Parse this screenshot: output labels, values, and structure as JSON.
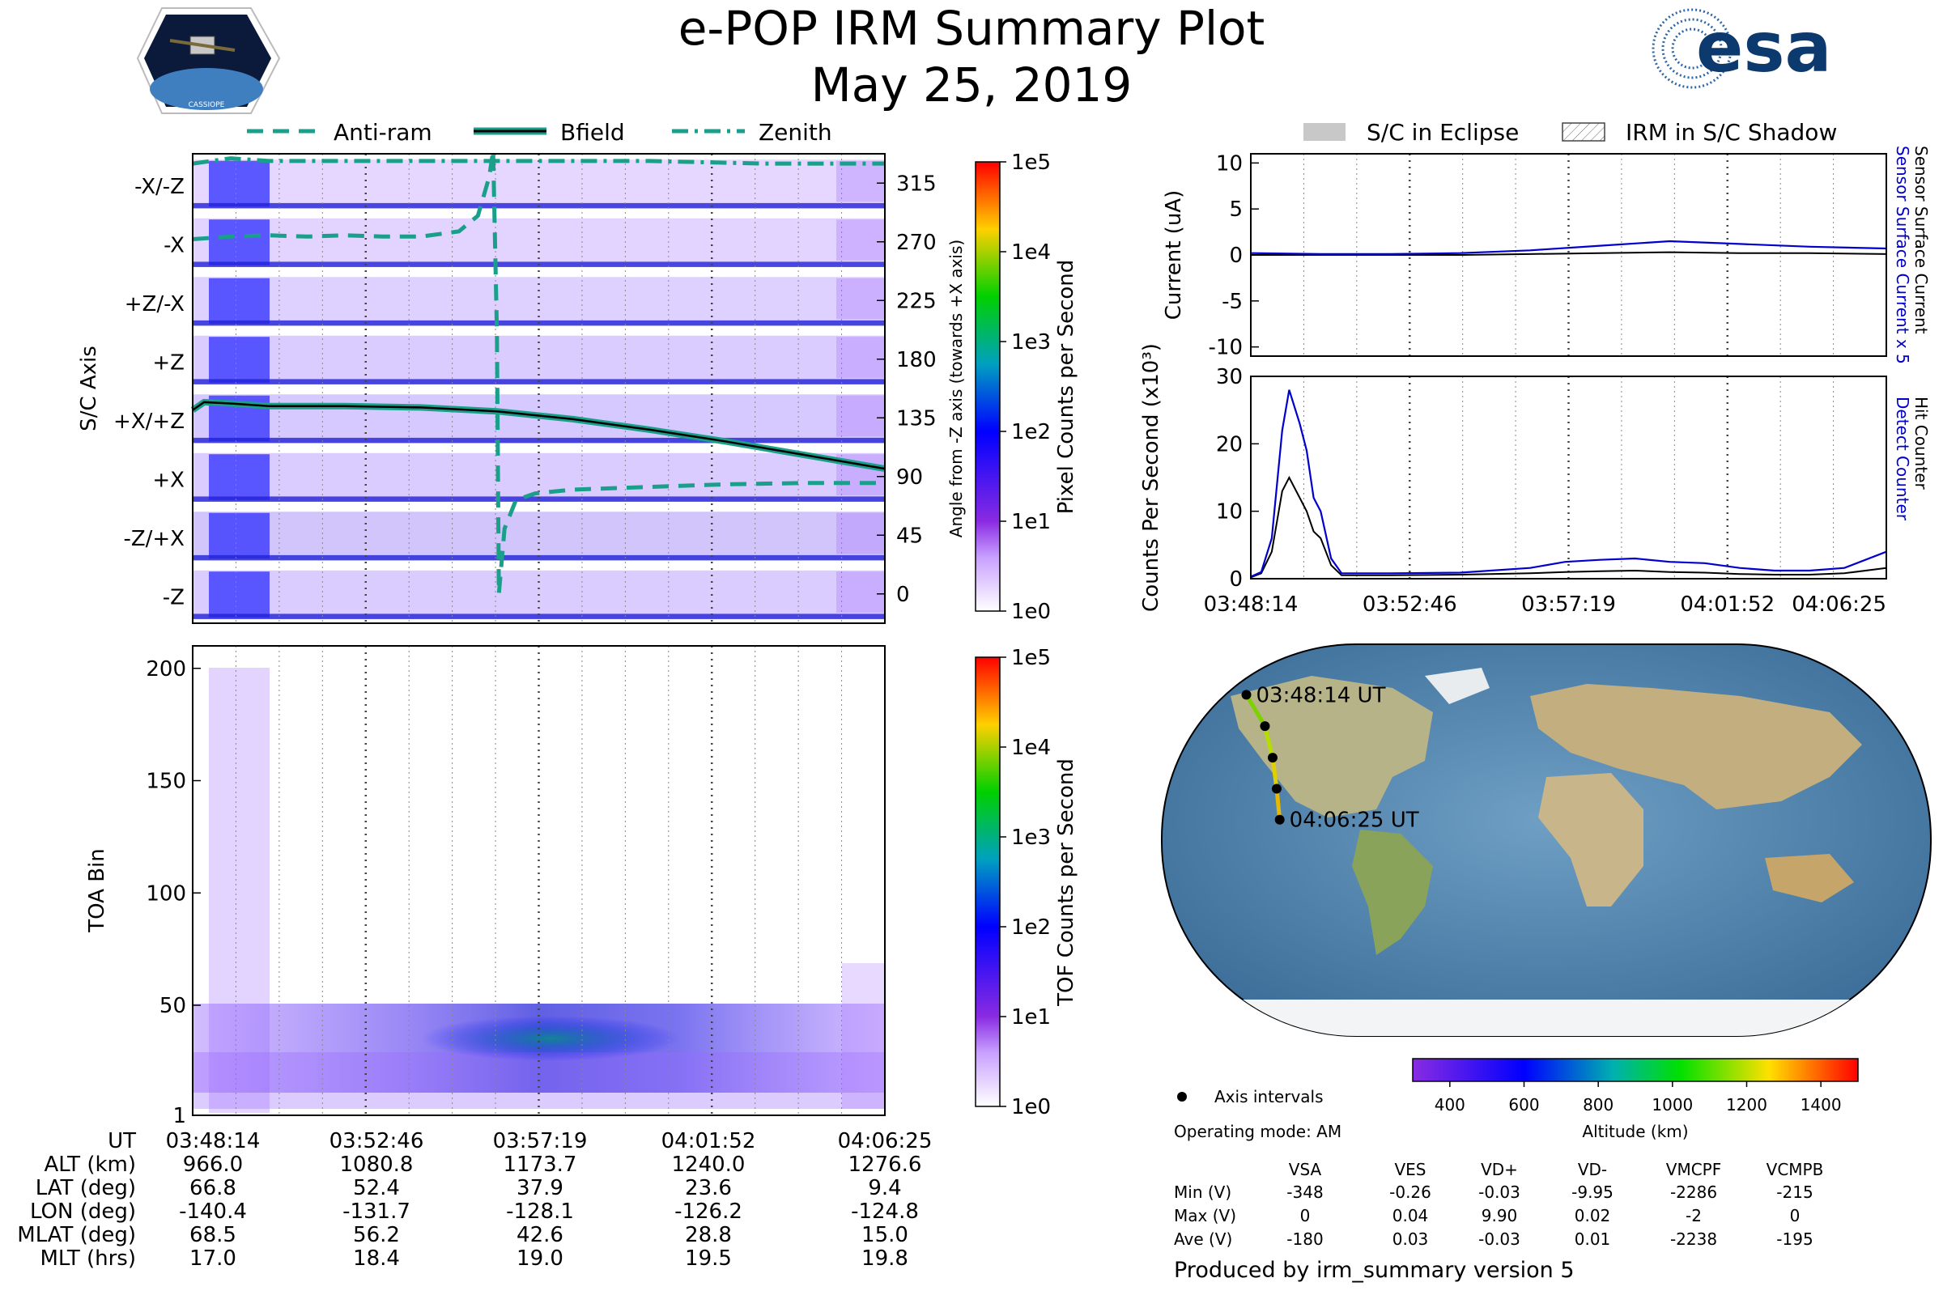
{
  "header": {
    "title": "e-POP IRM Summary Plot",
    "date": "May 25, 2019",
    "mission_logo_text": "CASSIOPE",
    "agency_logo_text": "esa"
  },
  "colors": {
    "anti_ram": "#1a9f8a",
    "bfield": "#000000",
    "zenith": "#1a9f8a",
    "sensor_surface_current": "#0000cc",
    "detect_counter": "#0000cc",
    "hit_counter": "#000000",
    "eclipse": "#c8c8c8"
  },
  "chart_data": [
    {
      "id": "pixel_counts",
      "type": "heatmap",
      "ylabel": "S/C Axis",
      "y_categories": [
        "-X/-Z",
        "-X",
        "+Z/-X",
        "+Z",
        "+X/+Z",
        "+X",
        "-Z/+X",
        "-Z"
      ],
      "y2label": "Angle from -Z axis (towards +X axis)",
      "y2_ticks": [
        315,
        270,
        225,
        180,
        135,
        90,
        45,
        0
      ],
      "y2lim": [
        0,
        360
      ],
      "x_ticks": [
        "03:48:14",
        "03:52:46",
        "03:57:19",
        "04:01:52",
        "04:06:25"
      ],
      "colorbar": {
        "label": "Pixel Counts per Second",
        "ticks": [
          "1e0",
          "1e1",
          "1e2",
          "1e3",
          "1e4",
          "1e5"
        ],
        "scale": "log"
      },
      "legend": [
        "Anti-ram",
        "Bfield",
        "Zenith"
      ],
      "series": [
        {
          "name": "Zenith",
          "x_min": [
            0,
            1,
            2,
            5,
            8,
            10,
            12,
            15,
            18.2
          ],
          "angle_deg": [
            330,
            334,
            332,
            332,
            332,
            332,
            332,
            330,
            330
          ]
        },
        {
          "name": "Anti-ram",
          "x_min": [
            0,
            1,
            2,
            3,
            4,
            5,
            6,
            7,
            7.5,
            7.8,
            7.9,
            8.0,
            8.05,
            8.2,
            8.5,
            9,
            10,
            12,
            14,
            16,
            18.2
          ],
          "angle_deg": [
            272,
            274,
            275,
            274,
            275,
            274,
            274,
            278,
            290,
            320,
            340,
            200,
            0,
            50,
            72,
            77,
            80,
            82,
            84,
            85,
            85
          ]
        },
        {
          "name": "Bfield",
          "x_min": [
            0,
            0.3,
            1,
            2,
            4,
            6,
            8,
            10,
            12,
            14,
            16,
            18.2
          ],
          "angle_deg": [
            141,
            147,
            146,
            144,
            144,
            143,
            140,
            134,
            126,
            117,
            107,
            96
          ]
        }
      ]
    },
    {
      "id": "tof_counts",
      "type": "heatmap",
      "ylabel": "TOA Bin",
      "y_ticks": [
        1,
        50,
        100,
        150,
        200
      ],
      "ylim": [
        1,
        210
      ],
      "x_ticks": [
        "03:48:14",
        "03:52:46",
        "03:57:19",
        "04:01:52",
        "04:06:25"
      ],
      "colorbar": {
        "label": "TOF Counts per Second",
        "ticks": [
          "1e0",
          "1e1",
          "1e2",
          "1e3",
          "1e4",
          "1e5"
        ],
        "scale": "log"
      }
    },
    {
      "id": "current",
      "type": "line",
      "ylabel": "Current (uA)",
      "ylim": [
        -11,
        11
      ],
      "y_ticks": [
        10,
        5,
        0,
        -5,
        -10
      ],
      "legend": [
        "S/C in Eclipse",
        "IRM in S/C Shadow"
      ],
      "series": [
        {
          "name": "Sensor Surface Current x 5",
          "x_min": [
            0,
            2,
            4,
            6,
            8,
            10,
            12,
            14,
            16,
            18.2
          ],
          "values": [
            0.2,
            0.1,
            0.1,
            0.2,
            0.5,
            1.0,
            1.5,
            1.2,
            0.9,
            0.7
          ]
        },
        {
          "name": "Sensor Surface Current",
          "x_min": [
            0,
            2,
            4,
            6,
            8,
            10,
            12,
            14,
            16,
            18.2
          ],
          "values": [
            0.0,
            0.0,
            0.0,
            0.0,
            0.1,
            0.2,
            0.3,
            0.2,
            0.2,
            0.1
          ]
        }
      ]
    },
    {
      "id": "counts",
      "type": "line",
      "ylabel": "Counts Per Second (x10³)",
      "ylim": [
        0,
        30
      ],
      "y_ticks": [
        0,
        10,
        20,
        30
      ],
      "x_ticks": [
        "03:48:14",
        "03:52:46",
        "03:57:19",
        "04:01:52",
        "04:06:25"
      ],
      "series": [
        {
          "name": "Detect Counter",
          "x_min": [
            0,
            0.3,
            0.6,
            0.9,
            1.1,
            1.4,
            1.6,
            1.8,
            2.0,
            2.3,
            2.6,
            3.0,
            4,
            6,
            8,
            9,
            10,
            11,
            12,
            13,
            14,
            15,
            16,
            17,
            18.2
          ],
          "values": [
            0.3,
            1,
            6,
            22,
            28,
            23,
            19,
            12,
            10,
            3,
            0.8,
            0.8,
            0.8,
            0.9,
            1.6,
            2.5,
            2.8,
            3.0,
            2.5,
            2.3,
            1.6,
            1.2,
            1.2,
            1.6,
            4.0
          ]
        },
        {
          "name": "Hit Counter",
          "x_min": [
            0,
            0.3,
            0.6,
            0.9,
            1.1,
            1.4,
            1.6,
            1.8,
            2.0,
            2.3,
            2.6,
            3.0,
            4,
            6,
            8,
            9,
            10,
            11,
            12,
            13,
            14,
            15,
            16,
            17,
            18.2
          ],
          "values": [
            0.2,
            0.8,
            4,
            13,
            15,
            12,
            10,
            7,
            6,
            2,
            0.5,
            0.5,
            0.5,
            0.6,
            0.8,
            1.0,
            1.1,
            1.2,
            1.0,
            0.9,
            0.7,
            0.6,
            0.6,
            0.8,
            1.6
          ]
        }
      ]
    },
    {
      "id": "ground_track",
      "type": "scatter",
      "annotations": [
        "03:48:14 UT",
        "04:06:25 UT"
      ],
      "longitude_deg": [
        -140.4,
        -131.7,
        -128.1,
        -126.2,
        -124.8
      ],
      "latitude_deg": [
        66.8,
        52.4,
        37.9,
        23.6,
        9.4
      ],
      "colorbar": {
        "label": "Altitude (km)",
        "ticks": [
          400,
          600,
          800,
          1000,
          1200,
          1400
        ],
        "range": [
          300,
          1500
        ]
      },
      "legend": "Axis intervals"
    }
  ],
  "ephemeris": {
    "labels": [
      "UT",
      "ALT (km)",
      "LAT (deg)",
      "LON (deg)",
      "MLAT (deg)",
      "MLT (hrs)"
    ],
    "columns": [
      [
        "03:48:14",
        "966.0",
        "66.8",
        "-140.4",
        "68.5",
        "17.0"
      ],
      [
        "03:52:46",
        "1080.8",
        "52.4",
        "-131.7",
        "56.2",
        "18.4"
      ],
      [
        "03:57:19",
        "1173.7",
        "37.9",
        "-128.1",
        "42.6",
        "19.0"
      ],
      [
        "04:01:52",
        "1240.0",
        "23.6",
        "-126.2",
        "28.8",
        "19.5"
      ],
      [
        "04:06:25",
        "1276.6",
        "9.4",
        "-124.8",
        "15.0",
        "19.8"
      ]
    ]
  },
  "operating_mode": "Operating mode: AM",
  "voltage_table": {
    "headers": [
      "VSA",
      "VES",
      "VD+",
      "VD-",
      "VMCPF",
      "VCMPB"
    ],
    "rows": [
      {
        "label": "Min (V)",
        "values": [
          "-348",
          "-0.26",
          "-0.03",
          "-9.95",
          "-2286",
          "-215"
        ]
      },
      {
        "label": "Max (V)",
        "values": [
          "0",
          "0.04",
          "9.90",
          "0.02",
          "-2",
          "0"
        ]
      },
      {
        "label": "Ave (V)",
        "values": [
          "-180",
          "0.03",
          "-0.03",
          "0.01",
          "-2238",
          "-195"
        ]
      }
    ]
  },
  "footer": "Produced by irm_summary version 5"
}
